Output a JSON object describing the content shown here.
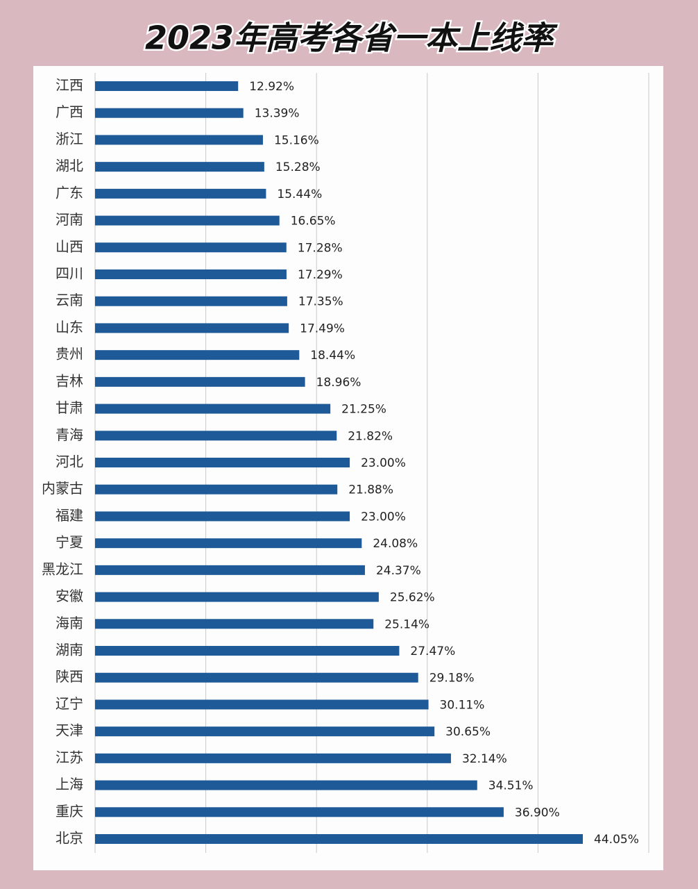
{
  "chart_data": {
    "type": "bar",
    "orientation": "horizontal",
    "title": "2023年高考各省一本上线率",
    "categories": [
      "江西",
      "广西",
      "浙江",
      "湖北",
      "广东",
      "河南",
      "山西",
      "四川",
      "云南",
      "山东",
      "贵州",
      "吉林",
      "甘肃",
      "青海",
      "河北",
      "内蒙古",
      "福建",
      "宁夏",
      "黑龙江",
      "安徽",
      "海南",
      "湖南",
      "陕西",
      "辽宁",
      "天津",
      "江苏",
      "上海",
      "重庆",
      "北京"
    ],
    "values": [
      12.92,
      13.39,
      15.16,
      15.28,
      15.44,
      16.65,
      17.28,
      17.29,
      17.35,
      17.49,
      18.44,
      18.96,
      21.25,
      21.82,
      23.0,
      21.88,
      23.0,
      24.08,
      24.37,
      25.62,
      25.14,
      27.47,
      29.18,
      30.11,
      30.65,
      32.14,
      34.51,
      36.9,
      44.05
    ],
    "value_labels": [
      "12.92%",
      "13.39%",
      "15.16%",
      "15.28%",
      "15.44%",
      "16.65%",
      "17.28%",
      "17.29%",
      "17.35%",
      "17.49%",
      "18.44%",
      "18.96%",
      "21.25%",
      "21.82%",
      "23.00%",
      "21.88%",
      "23.00%",
      "24.08%",
      "24.37%",
      "25.62%",
      "25.14%",
      "27.47%",
      "29.18%",
      "30.11%",
      "30.65%",
      "32.14%",
      "34.51%",
      "36.90%",
      "44.05%"
    ],
    "color": "#1f5a98",
    "xlim": [
      0,
      50
    ],
    "xticks": [
      0,
      10,
      20,
      30,
      40,
      50
    ],
    "grid": true
  }
}
